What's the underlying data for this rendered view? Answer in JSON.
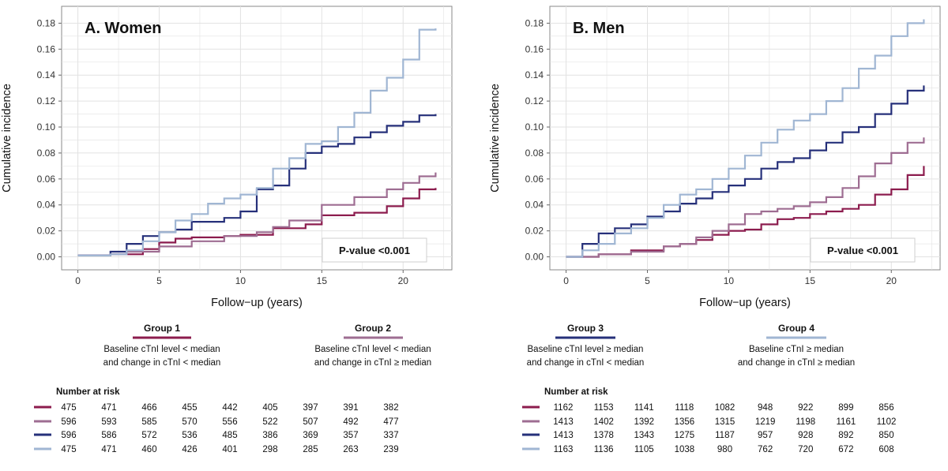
{
  "colors": {
    "group1": "#8c1c4e",
    "group2": "#9e6d92",
    "group3": "#26307a",
    "group4": "#a0b6d3",
    "grid": "#e2e2e2",
    "frame": "#8a8a8a"
  },
  "legend": {
    "groups": [
      {
        "title": "Group 1",
        "desc1": "Baseline cTnI level < median",
        "desc2": "and change in cTnI < median"
      },
      {
        "title": "Group 2",
        "desc1": "Baseline cTnI level < median",
        "desc2": "and change in cTnI ≥ median"
      },
      {
        "title": "Group 3",
        "desc1": "Baseline cTnI level ≥ median",
        "desc2": "and change in cTnI < median"
      },
      {
        "title": "Group 4",
        "desc1": "Baseline cTnI ≥ median",
        "desc2": "and change in cTnI ≥ median"
      }
    ]
  },
  "chart_data": [
    {
      "type": "line",
      "step": true,
      "title": "A. Women",
      "xlabel": "Follow−up (years)",
      "ylabel": "Cumulative incidence",
      "xlim": [
        -1,
        23
      ],
      "ylim": [
        -0.01,
        0.193
      ],
      "xticks": [
        "0",
        "5",
        "10",
        "15",
        "20"
      ],
      "yticks": [
        "0.00",
        "0.02",
        "0.04",
        "0.06",
        "0.08",
        "0.10",
        "0.12",
        "0.14",
        "0.16",
        "0.18"
      ],
      "annotation": "P-value <0.001",
      "series": [
        {
          "name": "Group 1",
          "x": [
            0,
            2,
            4,
            5,
            6,
            7,
            9,
            10,
            12,
            14,
            15,
            17,
            19,
            20,
            21,
            22
          ],
          "values": [
            0.001,
            0.002,
            0.006,
            0.011,
            0.014,
            0.015,
            0.016,
            0.017,
            0.022,
            0.025,
            0.032,
            0.034,
            0.039,
            0.045,
            0.052,
            0.053
          ]
        },
        {
          "name": "Group 2",
          "x": [
            0,
            2,
            3,
            5,
            7,
            9,
            11,
            12,
            13,
            15,
            17,
            19,
            20,
            21,
            22
          ],
          "values": [
            0.001,
            0.002,
            0.004,
            0.008,
            0.012,
            0.016,
            0.019,
            0.023,
            0.028,
            0.04,
            0.046,
            0.052,
            0.057,
            0.062,
            0.065
          ]
        },
        {
          "name": "Group 3",
          "x": [
            0,
            2,
            3,
            4,
            5,
            6,
            7,
            9,
            10,
            11,
            12,
            13,
            14,
            15,
            16,
            17,
            18,
            19,
            20,
            21,
            22
          ],
          "values": [
            0.001,
            0.004,
            0.01,
            0.016,
            0.019,
            0.021,
            0.027,
            0.03,
            0.035,
            0.052,
            0.055,
            0.068,
            0.08,
            0.085,
            0.087,
            0.092,
            0.096,
            0.101,
            0.104,
            0.109,
            0.11
          ]
        },
        {
          "name": "Group 4",
          "x": [
            0,
            2,
            3,
            4,
            5,
            6,
            7,
            8,
            9,
            10,
            11,
            12,
            13,
            14,
            15,
            16,
            17,
            18,
            19,
            20,
            21,
            22
          ],
          "values": [
            0.001,
            0.002,
            0.005,
            0.012,
            0.019,
            0.028,
            0.033,
            0.041,
            0.045,
            0.048,
            0.053,
            0.068,
            0.076,
            0.087,
            0.089,
            0.1,
            0.111,
            0.128,
            0.138,
            0.152,
            0.175,
            0.176
          ]
        }
      ],
      "risk_table": {
        "title": "Number at risk",
        "rows": [
          [
            "475",
            "471",
            "466",
            "455",
            "442",
            "405",
            "397",
            "391",
            "382"
          ],
          [
            "596",
            "593",
            "585",
            "570",
            "556",
            "522",
            "507",
            "492",
            "477"
          ],
          [
            "596",
            "586",
            "572",
            "536",
            "485",
            "386",
            "369",
            "357",
            "337"
          ],
          [
            "475",
            "471",
            "460",
            "426",
            "401",
            "298",
            "285",
            "263",
            "239"
          ]
        ]
      }
    },
    {
      "type": "line",
      "step": true,
      "title": "B. Men",
      "xlabel": "Follow−up (years)",
      "ylabel": "Cumulative incidence",
      "xlim": [
        -1,
        23
      ],
      "ylim": [
        -0.01,
        0.193
      ],
      "xticks": [
        "0",
        "5",
        "10",
        "15",
        "20"
      ],
      "yticks": [
        "0.00",
        "0.02",
        "0.04",
        "0.06",
        "0.08",
        "0.10",
        "0.12",
        "0.14",
        "0.16",
        "0.18"
      ],
      "annotation": "P-value <0.001",
      "series": [
        {
          "name": "Group 1",
          "x": [
            0,
            2,
            4,
            6,
            7,
            8,
            9,
            10,
            11,
            12,
            13,
            14,
            15,
            16,
            17,
            18,
            19,
            20,
            21,
            22
          ],
          "values": [
            0,
            0.002,
            0.005,
            0.008,
            0.01,
            0.013,
            0.017,
            0.02,
            0.021,
            0.025,
            0.029,
            0.03,
            0.033,
            0.035,
            0.037,
            0.04,
            0.048,
            0.052,
            0.063,
            0.07
          ]
        },
        {
          "name": "Group 2",
          "x": [
            0,
            2,
            4,
            6,
            7,
            8,
            9,
            10,
            11,
            12,
            13,
            14,
            15,
            16,
            17,
            18,
            19,
            20,
            21,
            22
          ],
          "values": [
            0,
            0.002,
            0.004,
            0.008,
            0.01,
            0.015,
            0.02,
            0.025,
            0.033,
            0.035,
            0.037,
            0.039,
            0.042,
            0.046,
            0.053,
            0.062,
            0.072,
            0.08,
            0.088,
            0.092
          ]
        },
        {
          "name": "Group 3",
          "x": [
            0,
            1,
            2,
            3,
            4,
            5,
            6,
            7,
            8,
            9,
            10,
            11,
            12,
            13,
            14,
            15,
            16,
            17,
            18,
            19,
            20,
            21,
            22
          ],
          "values": [
            0,
            0.01,
            0.018,
            0.022,
            0.025,
            0.031,
            0.035,
            0.041,
            0.045,
            0.05,
            0.055,
            0.06,
            0.068,
            0.073,
            0.076,
            0.082,
            0.088,
            0.096,
            0.1,
            0.11,
            0.118,
            0.128,
            0.132
          ]
        },
        {
          "name": "Group 4",
          "x": [
            0,
            1,
            2,
            3,
            4,
            5,
            6,
            7,
            8,
            9,
            10,
            11,
            12,
            13,
            14,
            15,
            16,
            17,
            18,
            19,
            20,
            21,
            22
          ],
          "values": [
            0,
            0.005,
            0.01,
            0.018,
            0.022,
            0.03,
            0.04,
            0.048,
            0.052,
            0.06,
            0.068,
            0.078,
            0.088,
            0.098,
            0.105,
            0.11,
            0.12,
            0.13,
            0.145,
            0.155,
            0.17,
            0.18,
            0.183
          ]
        }
      ],
      "risk_table": {
        "title": "Number at risk",
        "rows": [
          [
            "1162",
            "1153",
            "1141",
            "1118",
            "1082",
            "948",
            "922",
            "899",
            "856"
          ],
          [
            "1413",
            "1402",
            "1392",
            "1356",
            "1315",
            "1219",
            "1198",
            "1161",
            "1102"
          ],
          [
            "1413",
            "1378",
            "1343",
            "1275",
            "1187",
            "957",
            "928",
            "892",
            "850"
          ],
          [
            "1163",
            "1136",
            "1105",
            "1038",
            "980",
            "762",
            "720",
            "672",
            "608"
          ]
        ]
      }
    }
  ]
}
